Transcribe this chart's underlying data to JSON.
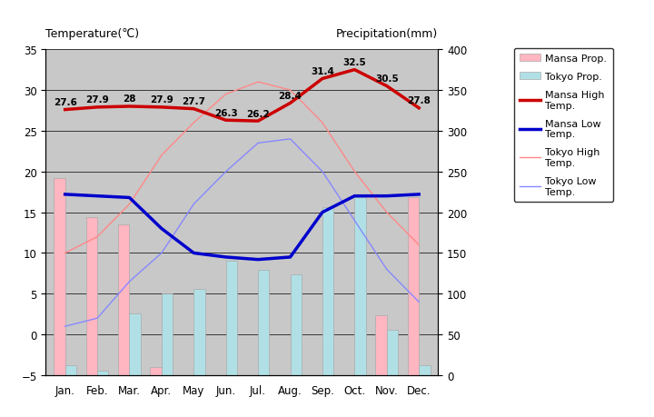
{
  "months": [
    "Jan.",
    "Feb.",
    "Mar.",
    "Apr.",
    "May",
    "Jun.",
    "Jul.",
    "Aug.",
    "Sep.",
    "Oct.",
    "Nov.",
    "Dec."
  ],
  "mansa_high": [
    27.6,
    27.9,
    28.0,
    27.9,
    27.7,
    26.3,
    26.2,
    28.4,
    31.4,
    32.5,
    30.5,
    27.8
  ],
  "mansa_low": [
    17.2,
    17.0,
    16.8,
    13.0,
    10.0,
    9.5,
    9.2,
    9.5,
    15.0,
    17.0,
    17.0,
    17.2
  ],
  "tokyo_high": [
    10.0,
    12.0,
    16.0,
    22.0,
    26.0,
    29.5,
    31.0,
    30.0,
    26.0,
    20.0,
    15.0,
    11.0
  ],
  "tokyo_low": [
    1.0,
    2.0,
    6.5,
    10.0,
    16.0,
    20.0,
    23.5,
    24.0,
    20.0,
    14.0,
    8.0,
    4.0
  ],
  "mansa_precip_mm": [
    242,
    194,
    185,
    10,
    0,
    0,
    0,
    0,
    0,
    0,
    74,
    218
  ],
  "tokyo_precip_mm": [
    12,
    6,
    76,
    100,
    106,
    141,
    129,
    124,
    206,
    218,
    56,
    12
  ],
  "temp_ylim": [
    -5,
    35
  ],
  "precip_ylim": [
    0,
    400
  ],
  "temp_yticks": [
    -5,
    0,
    5,
    10,
    15,
    20,
    25,
    30,
    35
  ],
  "precip_yticks": [
    0,
    50,
    100,
    150,
    200,
    250,
    300,
    350,
    400
  ],
  "background_color": "#c8c8c8",
  "mansa_high_color": "#cc0000",
  "mansa_low_color": "#0000cc",
  "tokyo_high_color": "#ff8888",
  "tokyo_low_color": "#8888ff",
  "mansa_precip_color": "#ffb6c1",
  "tokyo_precip_color": "#b0e0e6",
  "title_left": "Temperature(℃)",
  "title_right": "Precipitation(mm)",
  "mansa_high_label": "Mansa High\nTemp.",
  "mansa_low_label": "Mansa Low\nTemp.",
  "tokyo_high_label": "Tokyo High\nTemp.",
  "tokyo_low_label": "Tokyo Low\nTemp.",
  "mansa_precip_label": "Mansa Prop.",
  "tokyo_precip_label": "Tokyo Prop.",
  "mansa_high_annotations": [
    "27.6",
    "27.9",
    "28",
    "27.9",
    "27.7",
    "26.3",
    "26.2",
    "28.4",
    "31.4",
    "32.5",
    "30.5",
    "27.8"
  ],
  "annot_offsets": [
    0,
    0,
    0,
    0,
    0,
    0,
    0,
    0,
    0,
    0,
    0,
    0
  ]
}
